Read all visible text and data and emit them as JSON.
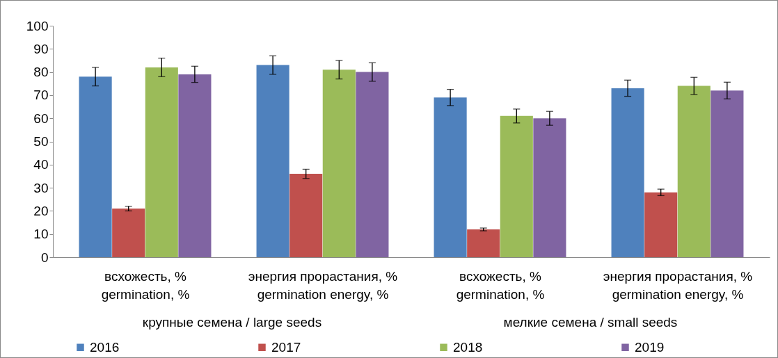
{
  "chart_data": {
    "type": "bar",
    "categories": [
      "всхожесть, %\ngermination, %",
      "энергия прорастания, %\ngermination energy, %",
      "всхожесть, %\ngermination, %",
      "энергия прорастания, %\ngermination energy, %"
    ],
    "series": [
      {
        "name": "2016",
        "color": "#4f81bd",
        "values": [
          78,
          83,
          69,
          73
        ],
        "errors": [
          4,
          4,
          3.5,
          3.5
        ]
      },
      {
        "name": "2017",
        "color": "#c0504d",
        "values": [
          21,
          36,
          12,
          28
        ],
        "errors": [
          1,
          2,
          0.6,
          1.4
        ]
      },
      {
        "name": "2018",
        "color": "#9bbb59",
        "values": [
          82,
          81,
          61,
          74
        ],
        "errors": [
          4,
          4,
          3,
          3.7
        ]
      },
      {
        "name": "2019",
        "color": "#8064a2",
        "values": [
          79,
          80,
          60,
          72
        ],
        "errors": [
          3.5,
          4,
          3,
          3.6
        ]
      }
    ],
    "annotations": [
      "крупные семена / large seeds",
      "мелкие семена / small seeds"
    ],
    "ylim": [
      0,
      100
    ],
    "yticks": [
      0,
      10,
      20,
      30,
      40,
      50,
      60,
      70,
      80,
      90,
      100
    ],
    "grid": false,
    "legend": "bottom"
  }
}
